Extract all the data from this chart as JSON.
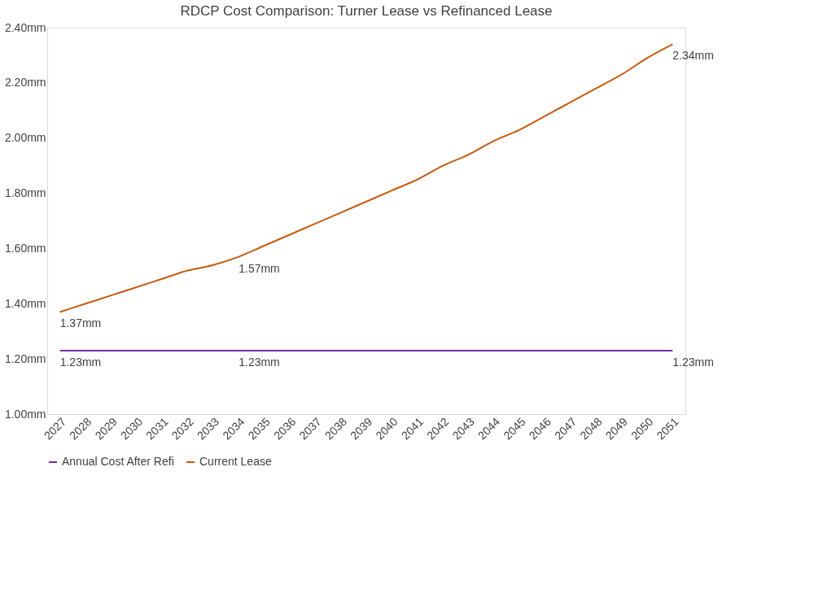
{
  "chart_data": {
    "type": "line",
    "title": "RDCP Cost Comparison: Turner Lease vs Refinanced Lease",
    "categories": [
      "2027",
      "2028",
      "2029",
      "2030",
      "2031",
      "2032",
      "2033",
      "2034",
      "2035",
      "2036",
      "2037",
      "2038",
      "2039",
      "2040",
      "2041",
      "2042",
      "2043",
      "2044",
      "2045",
      "2046",
      "2047",
      "2048",
      "2049",
      "2050",
      "2051"
    ],
    "series": [
      {
        "name": "Annual Cost After Refi",
        "color": "#7030a0",
        "values": [
          1.23,
          1.23,
          1.23,
          1.23,
          1.23,
          1.23,
          1.23,
          1.23,
          1.23,
          1.23,
          1.23,
          1.23,
          1.23,
          1.23,
          1.23,
          1.23,
          1.23,
          1.23,
          1.23,
          1.23,
          1.23,
          1.23,
          1.23,
          1.23,
          1.23
        ],
        "value_labels": [
          "1.23mm",
          null,
          null,
          null,
          null,
          null,
          null,
          "1.23mm",
          null,
          null,
          null,
          null,
          null,
          null,
          null,
          null,
          null,
          null,
          null,
          null,
          null,
          null,
          null,
          null,
          "1.23mm"
        ]
      },
      {
        "name": "Current Lease",
        "color": "#c55a11",
        "values": [
          1.37,
          1.4,
          1.43,
          1.46,
          1.49,
          1.52,
          1.54,
          1.57,
          1.61,
          1.65,
          1.69,
          1.73,
          1.77,
          1.81,
          1.85,
          1.9,
          1.94,
          1.99,
          2.03,
          2.08,
          2.13,
          2.18,
          2.23,
          2.29,
          2.34
        ],
        "value_labels": [
          "1.37mm",
          null,
          null,
          null,
          null,
          null,
          null,
          "1.57mm",
          null,
          null,
          null,
          null,
          null,
          null,
          null,
          null,
          null,
          null,
          null,
          null,
          null,
          null,
          null,
          null,
          "2.34mm"
        ]
      }
    ],
    "ylim": [
      1.0,
      2.4
    ],
    "yticks": [
      {
        "value": 1.0,
        "label": "1.00mm"
      },
      {
        "value": 1.2,
        "label": "1.20mm"
      },
      {
        "value": 1.4,
        "label": "1.40mm"
      },
      {
        "value": 1.6,
        "label": "1.60mm"
      },
      {
        "value": 1.8,
        "label": "1.80mm"
      },
      {
        "value": 2.0,
        "label": "2.00mm"
      },
      {
        "value": 2.2,
        "label": "2.20mm"
      },
      {
        "value": 2.4,
        "label": "2.40mm"
      }
    ],
    "grid": false,
    "legend": "bottom",
    "marker": "none",
    "line_style": "solid"
  }
}
